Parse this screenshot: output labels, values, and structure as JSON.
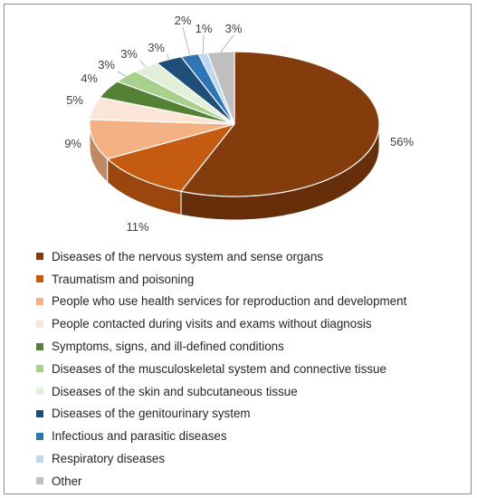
{
  "chart_data": {
    "type": "pie",
    "style": "3d-exploded-none",
    "categories": [
      "Diseases of the nervous system and sense organs",
      "Traumatism and poisoning",
      "People who use health services for reproduction and development",
      "People contacted during visits and exams without diagnosis",
      "Symptoms, signs, and ill-defined conditions",
      "Diseases of the musculoskeletal system and connective tissue",
      "Diseases of the skin and subcutaneous tissue",
      "Diseases of the genitourinary system",
      "Infectious and parasitic diseases",
      "Respiratory diseases",
      "Other"
    ],
    "values": [
      56,
      11,
      9,
      5,
      4,
      3,
      3,
      3,
      2,
      1,
      3
    ],
    "data_labels": [
      "56%",
      "11%",
      "9%",
      "5%",
      "4%",
      "3%",
      "3%",
      "3%",
      "2%",
      "1%",
      "3%"
    ],
    "colors": [
      "#843C0C",
      "#C55A11",
      "#F4B183",
      "#FBE5D6",
      "#548235",
      "#A9D18E",
      "#E2F0D9",
      "#1F4E79",
      "#2E75B6",
      "#BDD7EE",
      "#BFBFBF"
    ],
    "legend_position": "bottom",
    "grid": false
  }
}
